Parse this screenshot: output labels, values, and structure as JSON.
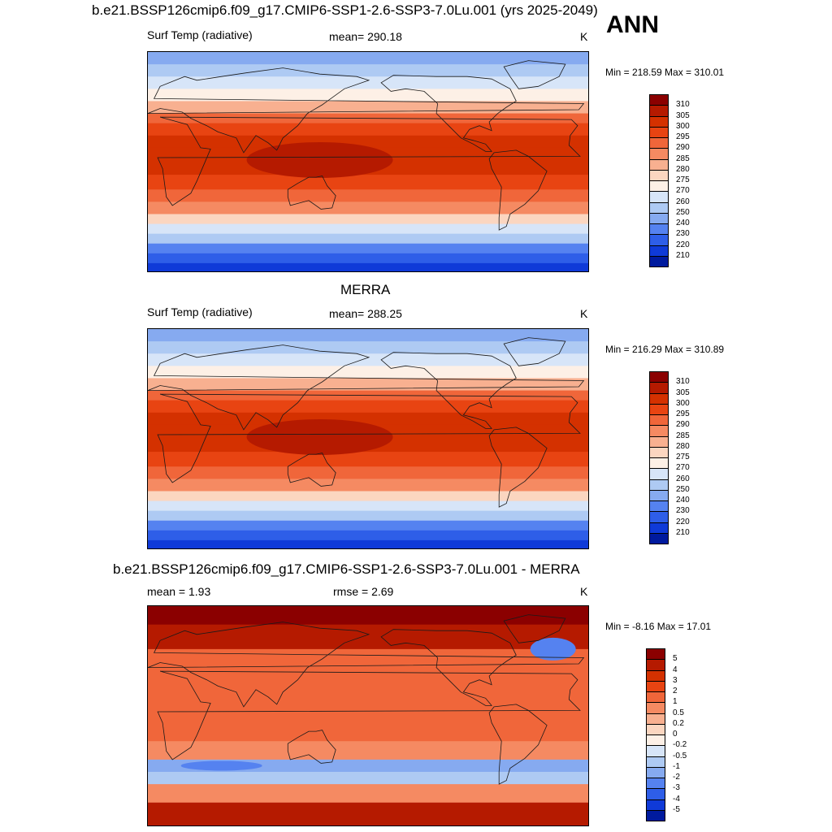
{
  "header": {
    "title": "b.e21.BSSP126cmip6.f09_g17.CMIP6-SSP1-2.6-SSP3-7.0Lu.001 (yrs 2025-2049)",
    "season": "ANN"
  },
  "panels": [
    {
      "id": "model",
      "title": "",
      "left_label": "Surf Temp (radiative)",
      "center_label": "mean= 290.18",
      "units": "K",
      "minmax": "Min = 218.59 Max = 310.01",
      "colorbar": {
        "levels": [
          "310",
          "305",
          "300",
          "295",
          "290",
          "285",
          "280",
          "275",
          "270",
          "260",
          "250",
          "240",
          "230",
          "220",
          "210"
        ],
        "colors": [
          "#8b0000",
          "#b51a00",
          "#d43100",
          "#e84412",
          "#f0663a",
          "#f58a62",
          "#f8b090",
          "#fbd6c0",
          "#fdf0e6",
          "#d7e5f8",
          "#aecaf3",
          "#86aaf0",
          "#5582f0",
          "#2e5ee8",
          "#0f3ad8",
          "#001a9e"
        ]
      }
    },
    {
      "id": "obs",
      "title": "MERRA",
      "left_label": "Surf Temp (radiative)",
      "center_label": "mean= 288.25",
      "units": "K",
      "minmax": "Min = 216.29 Max = 310.89",
      "colorbar": {
        "levels": [
          "310",
          "305",
          "300",
          "295",
          "290",
          "285",
          "280",
          "275",
          "270",
          "260",
          "250",
          "240",
          "230",
          "220",
          "210"
        ],
        "colors": [
          "#8b0000",
          "#b51a00",
          "#d43100",
          "#e84412",
          "#f0663a",
          "#f58a62",
          "#f8b090",
          "#fbd6c0",
          "#fdf0e6",
          "#d7e5f8",
          "#aecaf3",
          "#86aaf0",
          "#5582f0",
          "#2e5ee8",
          "#0f3ad8",
          "#001a9e"
        ]
      }
    },
    {
      "id": "diff",
      "title": "b.e21.BSSP126cmip6.f09_g17.CMIP6-SSP1-2.6-SSP3-7.0Lu.001 - MERRA",
      "left_label": "mean =   1.93",
      "center_label": "rmse =   2.69",
      "units": "K",
      "minmax": "Min =  -8.16 Max =  17.01",
      "colorbar": {
        "levels": [
          "5",
          "4",
          "3",
          "2",
          "1",
          "0.5",
          "0.2",
          "0",
          "-0.2",
          "-0.5",
          "-1",
          "-2",
          "-3",
          "-4",
          "-5"
        ],
        "colors": [
          "#8b0000",
          "#b51a00",
          "#d43100",
          "#e84412",
          "#f0663a",
          "#f58a62",
          "#f8b090",
          "#fbd6c0",
          "#fdf0e6",
          "#d7e5f8",
          "#aecaf3",
          "#86aaf0",
          "#5582f0",
          "#2e5ee8",
          "#0f3ad8",
          "#001a9e"
        ]
      }
    }
  ]
}
